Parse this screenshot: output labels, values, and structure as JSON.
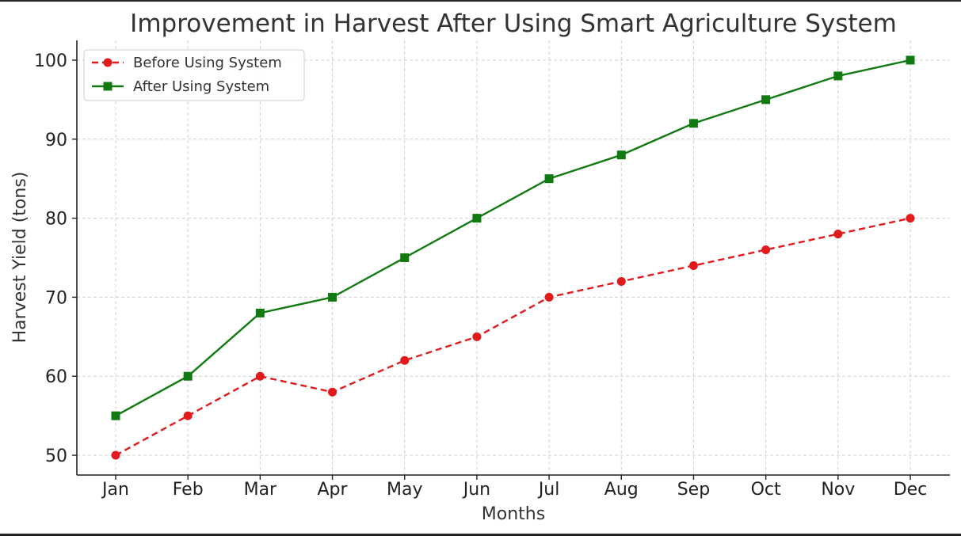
{
  "chart_data": {
    "type": "line",
    "title": "Improvement in Harvest After Using Smart Agriculture System",
    "xlabel": "Months",
    "ylabel": "Harvest Yield (tons)",
    "categories": [
      "Jan",
      "Feb",
      "Mar",
      "Apr",
      "May",
      "Jun",
      "Jul",
      "Aug",
      "Sep",
      "Oct",
      "Nov",
      "Dec"
    ],
    "ylim": [
      47.5,
      102.5
    ],
    "yticks": [
      50,
      60,
      70,
      80,
      90,
      100
    ],
    "grid": true,
    "legend_position": "top-left",
    "series": [
      {
        "name": "Before Using System",
        "values": [
          50,
          55,
          60,
          58,
          62,
          65,
          70,
          72,
          74,
          76,
          78,
          80
        ],
        "color": "#e31a1c",
        "line_style": "dashed",
        "marker": "circle"
      },
      {
        "name": "After Using System",
        "values": [
          55,
          60,
          68,
          70,
          75,
          80,
          85,
          88,
          92,
          95,
          98,
          100
        ],
        "color": "#117a11",
        "line_style": "solid",
        "marker": "square"
      }
    ]
  }
}
